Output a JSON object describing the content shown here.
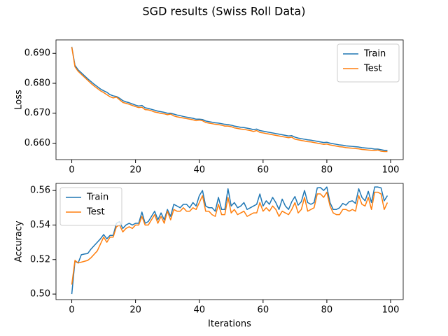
{
  "title": "SGD results (Swiss Roll Data)",
  "chart_data": [
    {
      "type": "line",
      "ylabel": "Loss",
      "legend": "upper right",
      "grid": false,
      "x": [
        0,
        1,
        2,
        3,
        4,
        5,
        6,
        7,
        8,
        9,
        10,
        11,
        12,
        13,
        14,
        15,
        16,
        17,
        18,
        19,
        20,
        21,
        22,
        23,
        24,
        25,
        26,
        27,
        28,
        29,
        30,
        31,
        32,
        33,
        34,
        35,
        36,
        37,
        38,
        39,
        40,
        41,
        42,
        43,
        44,
        45,
        46,
        47,
        48,
        49,
        50,
        51,
        52,
        53,
        54,
        55,
        56,
        57,
        58,
        59,
        60,
        61,
        62,
        63,
        64,
        65,
        66,
        67,
        68,
        69,
        70,
        71,
        72,
        73,
        74,
        75,
        76,
        77,
        78,
        79,
        80,
        81,
        82,
        83,
        84,
        85,
        86,
        87,
        88,
        89,
        90,
        91,
        92,
        93,
        94,
        95,
        96,
        97,
        98,
        99
      ],
      "xlim": [
        -4.95,
        103.95
      ],
      "xticks": [
        0,
        20,
        40,
        60,
        80,
        100
      ],
      "ylim": [
        0.6545,
        0.6945
      ],
      "yticks": [
        {
          "value": 0.66,
          "label": "0.660"
        },
        {
          "value": 0.67,
          "label": "0.670"
        },
        {
          "value": 0.68,
          "label": "0.680"
        },
        {
          "value": 0.69,
          "label": "0.690"
        }
      ],
      "series": [
        {
          "name": "Train",
          "color": "#1f77b4",
          "values": [
            0.6922,
            0.686,
            0.6845,
            0.6835,
            0.6825,
            0.6815,
            0.6806,
            0.6797,
            0.6789,
            0.6781,
            0.6775,
            0.677,
            0.6762,
            0.6758,
            0.6756,
            0.675,
            0.6742,
            0.6738,
            0.6735,
            0.6731,
            0.6727,
            0.6724,
            0.6726,
            0.6718,
            0.6716,
            0.6713,
            0.671,
            0.6707,
            0.6705,
            0.6703,
            0.67,
            0.67,
            0.6697,
            0.6694,
            0.6692,
            0.6689,
            0.6687,
            0.6685,
            0.6683,
            0.668,
            0.668,
            0.6679,
            0.6674,
            0.6672,
            0.667,
            0.6668,
            0.6667,
            0.6665,
            0.6663,
            0.6662,
            0.666,
            0.6657,
            0.6655,
            0.6653,
            0.6652,
            0.665,
            0.6648,
            0.6645,
            0.6647,
            0.6642,
            0.664,
            0.6638,
            0.6636,
            0.6634,
            0.6632,
            0.663,
            0.6628,
            0.6626,
            0.6624,
            0.6625,
            0.662,
            0.6617,
            0.6615,
            0.6613,
            0.6611,
            0.661,
            0.6608,
            0.6606,
            0.6604,
            0.6602,
            0.6603,
            0.66,
            0.6598,
            0.6596,
            0.6594,
            0.6593,
            0.6591,
            0.659,
            0.6589,
            0.6588,
            0.6587,
            0.6585,
            0.6584,
            0.6583,
            0.6582,
            0.658,
            0.658,
            0.6578,
            0.6576,
            0.6576
          ]
        },
        {
          "name": "Test",
          "color": "#ff7f0e",
          "values": [
            0.6921,
            0.6855,
            0.684,
            0.683,
            0.682,
            0.681,
            0.68,
            0.6791,
            0.6783,
            0.6775,
            0.6769,
            0.6762,
            0.6755,
            0.6751,
            0.6754,
            0.6745,
            0.6736,
            0.6733,
            0.673,
            0.6726,
            0.6722,
            0.6719,
            0.672,
            0.6712,
            0.6711,
            0.6708,
            0.6704,
            0.6702,
            0.6699,
            0.6698,
            0.6695,
            0.6697,
            0.6691,
            0.6688,
            0.6686,
            0.6684,
            0.6682,
            0.668,
            0.6678,
            0.6675,
            0.6677,
            0.6675,
            0.6669,
            0.6667,
            0.6665,
            0.6663,
            0.6662,
            0.666,
            0.6657,
            0.6657,
            0.6655,
            0.6651,
            0.6649,
            0.6647,
            0.6646,
            0.6644,
            0.6642,
            0.6639,
            0.6642,
            0.6636,
            0.6634,
            0.6632,
            0.663,
            0.6628,
            0.6626,
            0.6624,
            0.6622,
            0.662,
            0.6618,
            0.662,
            0.6613,
            0.6611,
            0.6609,
            0.6607,
            0.6605,
            0.6604,
            0.6602,
            0.66,
            0.6598,
            0.6596,
            0.6597,
            0.6594,
            0.6592,
            0.659,
            0.6588,
            0.6587,
            0.6585,
            0.6584,
            0.6583,
            0.6582,
            0.6581,
            0.6579,
            0.6578,
            0.6577,
            0.6576,
            0.6575,
            0.6577,
            0.6573,
            0.6572,
            0.6572
          ]
        }
      ]
    },
    {
      "type": "line",
      "ylabel": "Accuracy",
      "xlabel": "Iterations",
      "legend": "upper left",
      "grid": false,
      "x": [
        0,
        1,
        2,
        3,
        4,
        5,
        6,
        7,
        8,
        9,
        10,
        11,
        12,
        13,
        14,
        15,
        16,
        17,
        18,
        19,
        20,
        21,
        22,
        23,
        24,
        25,
        26,
        27,
        28,
        29,
        30,
        31,
        32,
        33,
        34,
        35,
        36,
        37,
        38,
        39,
        40,
        41,
        42,
        43,
        44,
        45,
        46,
        47,
        48,
        49,
        50,
        51,
        52,
        53,
        54,
        55,
        56,
        57,
        58,
        59,
        60,
        61,
        62,
        63,
        64,
        65,
        66,
        67,
        68,
        69,
        70,
        71,
        72,
        73,
        74,
        75,
        76,
        77,
        78,
        79,
        80,
        81,
        82,
        83,
        84,
        85,
        86,
        87,
        88,
        89,
        90,
        91,
        92,
        93,
        94,
        95,
        96,
        97,
        98,
        99
      ],
      "xlim": [
        -4.95,
        103.95
      ],
      "xticks": [
        0,
        20,
        40,
        60,
        80,
        100
      ],
      "ylim": [
        0.4968,
        0.5641
      ],
      "yticks": [
        {
          "value": 0.5,
          "label": "0.50"
        },
        {
          "value": 0.52,
          "label": "0.52"
        },
        {
          "value": 0.54,
          "label": "0.54"
        },
        {
          "value": 0.56,
          "label": "0.56"
        }
      ],
      "series": [
        {
          "name": "Train",
          "color": "#1f77b4",
          "values": [
            0.5,
            0.519,
            0.518,
            0.5228,
            0.5232,
            0.5235,
            0.526,
            0.528,
            0.53,
            0.532,
            0.5345,
            0.532,
            0.534,
            0.534,
            0.541,
            0.542,
            0.538,
            0.54,
            0.541,
            0.54,
            0.541,
            0.541,
            0.5475,
            0.541,
            0.542,
            0.545,
            0.548,
            0.543,
            0.547,
            0.543,
            0.549,
            0.545,
            0.552,
            0.551,
            0.55,
            0.552,
            0.552,
            0.55,
            0.553,
            0.551,
            0.557,
            0.56,
            0.551,
            0.55,
            0.55,
            0.548,
            0.556,
            0.549,
            0.549,
            0.561,
            0.551,
            0.553,
            0.55,
            0.551,
            0.553,
            0.549,
            0.55,
            0.551,
            0.552,
            0.558,
            0.551,
            0.554,
            0.552,
            0.556,
            0.553,
            0.549,
            0.555,
            0.551,
            0.549,
            0.5535,
            0.5565,
            0.5515,
            0.5535,
            0.56,
            0.553,
            0.552,
            0.553,
            0.5615,
            0.5617,
            0.56,
            0.562,
            0.553,
            0.549,
            0.549,
            0.55,
            0.5525,
            0.5515,
            0.5535,
            0.554,
            0.5525,
            0.561,
            0.556,
            0.554,
            0.5595,
            0.553,
            0.562,
            0.562,
            0.5615,
            0.554,
            0.557
          ]
        },
        {
          "name": "Test",
          "color": "#ff7f0e",
          "values": [
            0.5055,
            0.5195,
            0.518,
            0.5185,
            0.519,
            0.5195,
            0.521,
            0.523,
            0.525,
            0.529,
            0.533,
            0.53,
            0.533,
            0.533,
            0.539,
            0.54,
            0.536,
            0.538,
            0.539,
            0.538,
            0.54,
            0.54,
            0.545,
            0.54,
            0.54,
            0.543,
            0.546,
            0.541,
            0.545,
            0.541,
            0.548,
            0.543,
            0.549,
            0.548,
            0.548,
            0.55,
            0.548,
            0.548,
            0.55,
            0.549,
            0.553,
            0.557,
            0.548,
            0.548,
            0.546,
            0.545,
            0.552,
            0.546,
            0.546,
            0.556,
            0.547,
            0.549,
            0.546,
            0.547,
            0.548,
            0.545,
            0.546,
            0.547,
            0.547,
            0.553,
            0.548,
            0.55,
            0.548,
            0.551,
            0.549,
            0.545,
            0.548,
            0.547,
            0.546,
            0.549,
            0.553,
            0.547,
            0.549,
            0.556,
            0.548,
            0.549,
            0.55,
            0.558,
            0.558,
            0.556,
            0.559,
            0.551,
            0.547,
            0.546,
            0.546,
            0.549,
            0.549,
            0.548,
            0.549,
            0.548,
            0.557,
            0.552,
            0.551,
            0.556,
            0.549,
            0.559,
            0.559,
            0.558,
            0.549,
            0.553
          ]
        }
      ]
    }
  ]
}
